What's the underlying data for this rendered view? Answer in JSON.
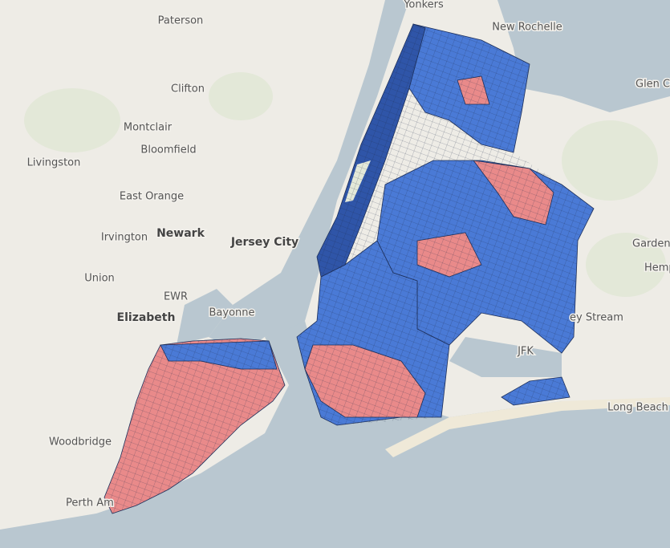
{
  "labels": [
    {
      "text": "Yonkers"
    },
    {
      "text": "New Rochelle"
    },
    {
      "text": "Paterson"
    },
    {
      "text": "Clifton"
    },
    {
      "text": "Montclair"
    },
    {
      "text": "Bloomfield"
    },
    {
      "text": "Livingston"
    },
    {
      "text": "East Orange"
    },
    {
      "text": "Irvington"
    },
    {
      "text": "Newark"
    },
    {
      "text": "Jersey City"
    },
    {
      "text": "Glen Co"
    },
    {
      "text": "Union"
    },
    {
      "text": "EWR"
    },
    {
      "text": "Bayonne"
    },
    {
      "text": "Elizabeth"
    },
    {
      "text": "Garden C"
    },
    {
      "text": "Hemp"
    },
    {
      "text": "ey Stream"
    },
    {
      "text": "JFK"
    },
    {
      "text": "Long Beach"
    },
    {
      "text": "Woodbridge"
    },
    {
      "text": "Perth Am"
    }
  ]
}
